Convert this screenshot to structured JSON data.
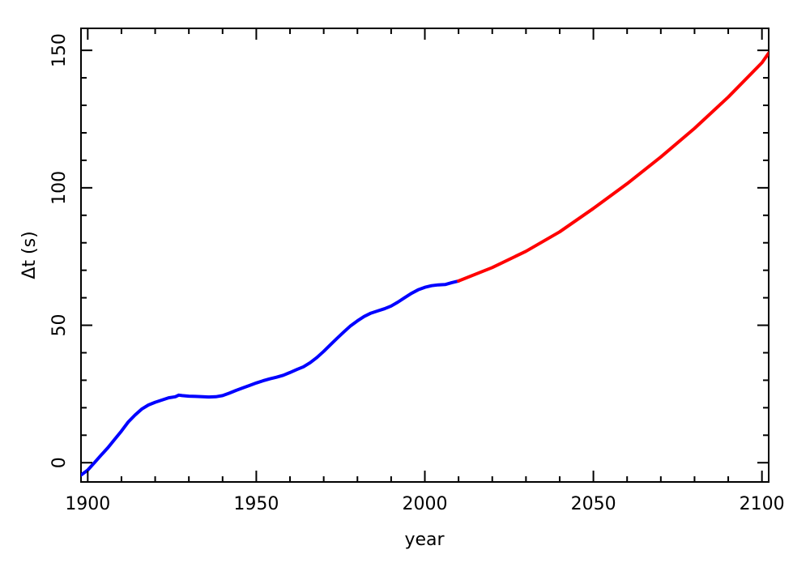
{
  "chart_data": {
    "type": "line",
    "xlabel": "year",
    "ylabel": "Δt (s)",
    "xlim": [
      1898,
      2102
    ],
    "ylim": [
      -7,
      158
    ],
    "x_ticks": [
      1900,
      1950,
      2000,
      2050,
      2100
    ],
    "y_ticks": [
      0,
      50,
      100,
      150
    ],
    "x_minor_step": 10,
    "y_minor_step": 10,
    "grid": false,
    "series": [
      {
        "color": "#0000ff",
        "points": [
          [
            1898,
            -4.5
          ],
          [
            1900,
            -2.7
          ],
          [
            1902,
            0.0
          ],
          [
            1904,
            2.8
          ],
          [
            1906,
            5.5
          ],
          [
            1908,
            8.5
          ],
          [
            1910,
            11.5
          ],
          [
            1912,
            14.8
          ],
          [
            1914,
            17.3
          ],
          [
            1916,
            19.5
          ],
          [
            1918,
            21.0
          ],
          [
            1920,
            22.0
          ],
          [
            1922,
            22.8
          ],
          [
            1924,
            23.6
          ],
          [
            1926,
            24.0
          ],
          [
            1927,
            24.6
          ],
          [
            1928,
            24.4
          ],
          [
            1930,
            24.2
          ],
          [
            1932,
            24.1
          ],
          [
            1934,
            24.0
          ],
          [
            1936,
            23.9
          ],
          [
            1938,
            24.0
          ],
          [
            1940,
            24.4
          ],
          [
            1942,
            25.3
          ],
          [
            1944,
            26.3
          ],
          [
            1946,
            27.2
          ],
          [
            1948,
            28.1
          ],
          [
            1950,
            29.0
          ],
          [
            1952,
            29.8
          ],
          [
            1954,
            30.5
          ],
          [
            1956,
            31.1
          ],
          [
            1958,
            31.8
          ],
          [
            1960,
            32.8
          ],
          [
            1962,
            33.9
          ],
          [
            1964,
            34.9
          ],
          [
            1966,
            36.4
          ],
          [
            1968,
            38.3
          ],
          [
            1970,
            40.5
          ],
          [
            1972,
            42.9
          ],
          [
            1974,
            45.3
          ],
          [
            1976,
            47.6
          ],
          [
            1978,
            49.8
          ],
          [
            1980,
            51.6
          ],
          [
            1982,
            53.2
          ],
          [
            1984,
            54.4
          ],
          [
            1986,
            55.2
          ],
          [
            1988,
            56.0
          ],
          [
            1990,
            57.0
          ],
          [
            1992,
            58.4
          ],
          [
            1994,
            60.0
          ],
          [
            1996,
            61.6
          ],
          [
            1998,
            62.9
          ],
          [
            2000,
            63.8
          ],
          [
            2002,
            64.4
          ],
          [
            2004,
            64.7
          ],
          [
            2006,
            64.8
          ],
          [
            2008,
            65.5
          ],
          [
            2010,
            66.1
          ]
        ]
      },
      {
        "color": "#ff0000",
        "points": [
          [
            2010,
            66.1
          ],
          [
            2020,
            71.0
          ],
          [
            2030,
            76.9
          ],
          [
            2040,
            84.0
          ],
          [
            2050,
            92.5
          ],
          [
            2060,
            101.5
          ],
          [
            2070,
            111.2
          ],
          [
            2080,
            121.6
          ],
          [
            2090,
            133.0
          ],
          [
            2100,
            145.5
          ],
          [
            2102,
            149.0
          ]
        ]
      }
    ]
  }
}
